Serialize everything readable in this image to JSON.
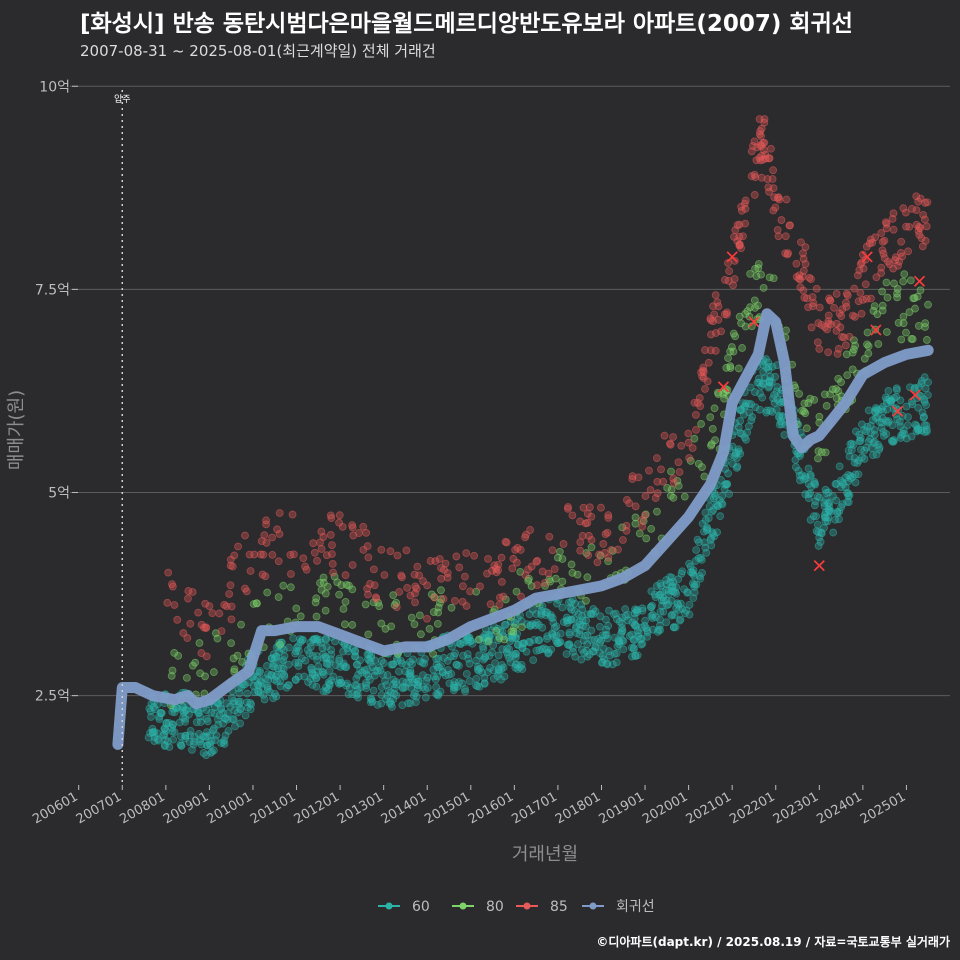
{
  "header": {
    "title": "[화성시] 반송 동탄시범다은마을월드메르디앙반도유보라 아파트(2007) 회귀선",
    "subtitle": "2007-08-31 ~ 2025-08-01(최근계약일) 전체 거래건"
  },
  "footer": {
    "credit": "©디아파트(dapt.kr) / 2025.08.19 / 자료=국토교통부 실거래가"
  },
  "colors": {
    "s60": "#2bb3a8",
    "s80": "#7ed36a",
    "s85": "#e85a5a",
    "trend": "#7f9cc8"
  },
  "chart_data": {
    "type": "scatter",
    "title": "[화성시] 반송 동탄시범다은마을월드메르디앙반도유보라 아파트(2007) 회귀선",
    "xlabel": "거래년월",
    "ylabel": "매매가(원)",
    "xlim": [
      2005.8,
      2026.0
    ],
    "ylim": [
      1.4,
      10.2
    ],
    "y_ticks": [
      {
        "value": 2.5,
        "label": "2.5억"
      },
      {
        "value": 5,
        "label": "5억"
      },
      {
        "value": 7.5,
        "label": "7.5억"
      },
      {
        "value": 10,
        "label": "10억"
      }
    ],
    "x_ticks": [
      {
        "value": 2006.0,
        "label": "200601"
      },
      {
        "value": 2007.0,
        "label": "200701"
      },
      {
        "value": 2008.0,
        "label": "200801"
      },
      {
        "value": 2009.0,
        "label": "200901"
      },
      {
        "value": 2010.0,
        "label": "201001"
      },
      {
        "value": 2011.0,
        "label": "201101"
      },
      {
        "value": 2012.0,
        "label": "201201"
      },
      {
        "value": 2013.0,
        "label": "201301"
      },
      {
        "value": 2014.0,
        "label": "201401"
      },
      {
        "value": 2015.0,
        "label": "201501"
      },
      {
        "value": 2016.0,
        "label": "201601"
      },
      {
        "value": 2017.0,
        "label": "201701"
      },
      {
        "value": 2018.0,
        "label": "201801"
      },
      {
        "value": 2019.0,
        "label": "201901"
      },
      {
        "value": 2020.0,
        "label": "202001"
      },
      {
        "value": 2021.0,
        "label": "202101"
      },
      {
        "value": 2022.0,
        "label": "202201"
      },
      {
        "value": 2023.0,
        "label": "202301"
      },
      {
        "value": 2024.0,
        "label": "202401"
      },
      {
        "value": 2025.0,
        "label": "202501"
      }
    ],
    "annotation": {
      "x": 2007.0,
      "label": "입주"
    },
    "legend": {
      "position": "bottom",
      "items": [
        "60",
        "80",
        "85",
        "회귀선"
      ]
    },
    "series": [
      {
        "name": "60",
        "color": "#2bb3a8",
        "bands": [
          [
            2007.6,
            2.3
          ],
          [
            2008.0,
            2.2
          ],
          [
            2008.5,
            2.2
          ],
          [
            2009.0,
            2.1
          ],
          [
            2009.5,
            2.3
          ],
          [
            2010.0,
            2.7
          ],
          [
            2010.5,
            2.8
          ],
          [
            2011.0,
            2.9
          ],
          [
            2011.5,
            2.9
          ],
          [
            2012.0,
            2.9
          ],
          [
            2012.5,
            2.8
          ],
          [
            2013.0,
            2.7
          ],
          [
            2013.5,
            2.7
          ],
          [
            2014.0,
            2.8
          ],
          [
            2014.5,
            2.9
          ],
          [
            2015.0,
            2.9
          ],
          [
            2015.5,
            3.0
          ],
          [
            2016.0,
            3.1
          ],
          [
            2016.5,
            3.3
          ],
          [
            2017.0,
            3.4
          ],
          [
            2017.5,
            3.3
          ],
          [
            2018.0,
            3.2
          ],
          [
            2018.5,
            3.2
          ],
          [
            2019.0,
            3.4
          ],
          [
            2019.5,
            3.6
          ],
          [
            2020.0,
            3.8
          ],
          [
            2020.5,
            4.6
          ],
          [
            2021.0,
            5.4
          ],
          [
            2021.5,
            6.3
          ],
          [
            2022.0,
            6.3
          ],
          [
            2022.5,
            5.6
          ],
          [
            2023.0,
            4.6
          ],
          [
            2023.5,
            5.0
          ],
          [
            2024.0,
            5.6
          ],
          [
            2024.5,
            5.9
          ],
          [
            2025.0,
            6.0
          ],
          [
            2025.5,
            6.1
          ]
        ]
      },
      {
        "name": "80",
        "color": "#7ed36a",
        "bands": [
          [
            2008.0,
            2.6
          ],
          [
            2009.0,
            2.8
          ],
          [
            2010.0,
            3.3
          ],
          [
            2011.0,
            3.6
          ],
          [
            2012.0,
            3.6
          ],
          [
            2013.0,
            3.4
          ],
          [
            2014.0,
            3.4
          ],
          [
            2015.0,
            3.5
          ],
          [
            2016.0,
            3.6
          ],
          [
            2017.0,
            3.9
          ],
          [
            2018.0,
            4.0
          ],
          [
            2019.0,
            4.4
          ],
          [
            2020.0,
            5.2
          ],
          [
            2020.7,
            5.9
          ],
          [
            2021.0,
            6.5
          ],
          [
            2021.5,
            7.5
          ],
          [
            2022.0,
            7.3
          ],
          [
            2022.5,
            6.0
          ],
          [
            2023.0,
            5.7
          ],
          [
            2023.5,
            6.2
          ],
          [
            2024.0,
            6.8
          ],
          [
            2024.5,
            7.2
          ],
          [
            2025.0,
            7.3
          ],
          [
            2025.5,
            7.1
          ]
        ]
      },
      {
        "name": "85",
        "color": "#e85a5a",
        "bands": [
          [
            2008.0,
            3.9
          ],
          [
            2009.0,
            3.3
          ],
          [
            2010.0,
            4.3
          ],
          [
            2011.0,
            4.4
          ],
          [
            2012.0,
            4.4
          ],
          [
            2013.0,
            4.0
          ],
          [
            2014.0,
            3.8
          ],
          [
            2015.0,
            4.0
          ],
          [
            2016.0,
            4.0
          ],
          [
            2017.0,
            4.4
          ],
          [
            2018.0,
            4.5
          ],
          [
            2019.0,
            5.0
          ],
          [
            2020.0,
            5.7
          ],
          [
            2020.5,
            6.8
          ],
          [
            2021.0,
            7.8
          ],
          [
            2021.4,
            8.9
          ],
          [
            2021.7,
            9.3
          ],
          [
            2022.0,
            8.6
          ],
          [
            2022.6,
            7.8
          ],
          [
            2023.0,
            7.0
          ],
          [
            2023.5,
            7.1
          ],
          [
            2024.0,
            7.6
          ],
          [
            2024.5,
            8.0
          ],
          [
            2025.0,
            8.2
          ],
          [
            2025.5,
            8.5
          ]
        ]
      }
    ],
    "trend": {
      "name": "회귀선",
      "x": [
        2006.9,
        2007.0,
        2007.3,
        2007.7,
        2008.2,
        2008.5,
        2008.7,
        2009.0,
        2009.5,
        2009.9,
        2010.2,
        2010.5,
        2011.0,
        2011.5,
        2012.0,
        2012.5,
        2013.0,
        2013.5,
        2014.0,
        2014.5,
        2015.0,
        2015.5,
        2016.0,
        2016.5,
        2017.0,
        2017.5,
        2018.0,
        2018.5,
        2019.0,
        2019.5,
        2020.0,
        2020.5,
        2020.8,
        2021.0,
        2021.3,
        2021.6,
        2021.8,
        2022.0,
        2022.2,
        2022.4,
        2022.6,
        2022.8,
        2023.0,
        2023.3,
        2023.6,
        2024.0,
        2024.5,
        2025.0,
        2025.5
      ],
      "y": [
        1.9,
        2.6,
        2.6,
        2.5,
        2.45,
        2.5,
        2.4,
        2.45,
        2.65,
        2.8,
        3.3,
        3.3,
        3.35,
        3.35,
        3.25,
        3.15,
        3.05,
        3.1,
        3.1,
        3.2,
        3.35,
        3.45,
        3.55,
        3.7,
        3.75,
        3.8,
        3.85,
        3.95,
        4.1,
        4.4,
        4.7,
        5.1,
        5.5,
        6.1,
        6.4,
        6.7,
        7.2,
        7.1,
        6.6,
        5.7,
        5.55,
        5.65,
        5.7,
        5.9,
        6.1,
        6.45,
        6.6,
        6.7,
        6.75
      ]
    },
    "highlights": [
      {
        "x": 2021.0,
        "y": 7.9
      },
      {
        "x": 2021.5,
        "y": 7.1
      },
      {
        "x": 2020.8,
        "y": 6.3
      },
      {
        "x": 2024.1,
        "y": 7.9
      },
      {
        "x": 2024.3,
        "y": 7.0
      },
      {
        "x": 2024.8,
        "y": 6.0
      },
      {
        "x": 2025.2,
        "y": 6.2
      },
      {
        "x": 2025.3,
        "y": 7.6
      },
      {
        "x": 2023.0,
        "y": 4.1
      }
    ]
  }
}
